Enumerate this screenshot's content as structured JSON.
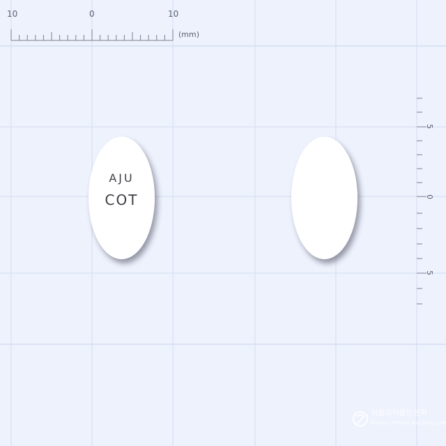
{
  "ruler_top": {
    "labels": [
      "10",
      "0",
      "10"
    ],
    "unit": "(mm)"
  },
  "ruler_right": {
    "labels": [
      "5",
      "0",
      "5"
    ]
  },
  "pill_front": {
    "imprint_line1": "AJU",
    "imprint_line2": "COT",
    "color": "#ffffff"
  },
  "pill_back": {
    "color": "#ffffff"
  },
  "watermark": {
    "name_ko": "식품의약품안전처",
    "name_en": "Ministry of Food and Drug Safety"
  },
  "colors": {
    "background": "#eef2fd",
    "grid_line": "#d3dcf1",
    "ruler": "#7a7f8e"
  }
}
